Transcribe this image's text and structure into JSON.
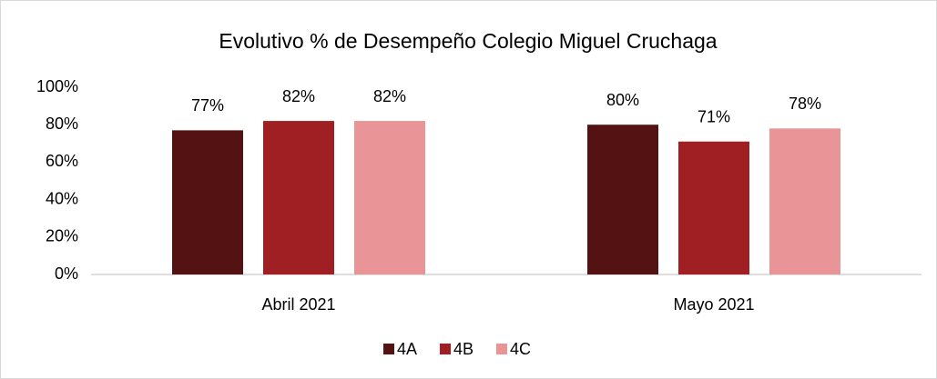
{
  "chart_data": {
    "type": "bar",
    "title": "Evolutivo % de Desempeño Colegio Miguel Cruchaga",
    "categories": [
      "Abril 2021",
      "Mayo 2021"
    ],
    "series": [
      {
        "name": "4A",
        "color": "#541213",
        "values": [
          77,
          80
        ],
        "value_labels": [
          "77%",
          "80%"
        ]
      },
      {
        "name": "4B",
        "color": "#a01f22",
        "values": [
          82,
          71
        ],
        "value_labels": [
          "82%",
          "71%"
        ]
      },
      {
        "name": "4C",
        "color": "#e99597",
        "values": [
          82,
          78
        ],
        "value_labels": [
          "82%",
          "78%"
        ]
      }
    ],
    "ylim": [
      0,
      100
    ],
    "yticks": [
      {
        "value": 0,
        "label": "0%"
      },
      {
        "value": 20,
        "label": "20%"
      },
      {
        "value": 40,
        "label": "40%"
      },
      {
        "value": 60,
        "label": "60%"
      },
      {
        "value": 80,
        "label": "80%"
      },
      {
        "value": 100,
        "label": "100%"
      }
    ],
    "grid": false,
    "legend": "bottom"
  }
}
